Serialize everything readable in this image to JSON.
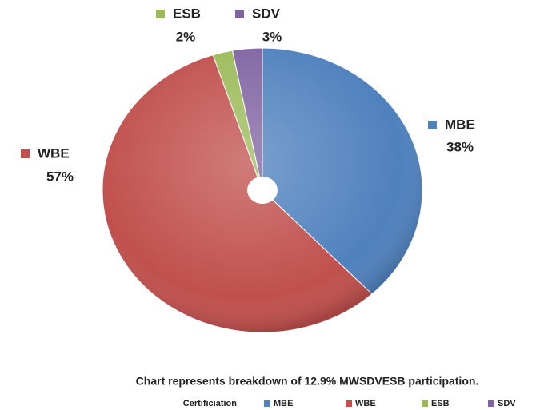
{
  "chart_data": {
    "type": "pie",
    "categories": [
      "MBE",
      "WBE",
      "ESB",
      "SDV"
    ],
    "values": [
      38,
      57,
      2,
      3
    ],
    "value_labels": [
      "38%",
      "57%",
      "2%",
      "3%"
    ],
    "colors": [
      "#4f81bd",
      "#c0504d",
      "#9bbb59",
      "#8064a2"
    ],
    "caption": "Chart represents breakdown of 12.9% MWSDVESB participation.",
    "legend_title": "Certificiation"
  }
}
